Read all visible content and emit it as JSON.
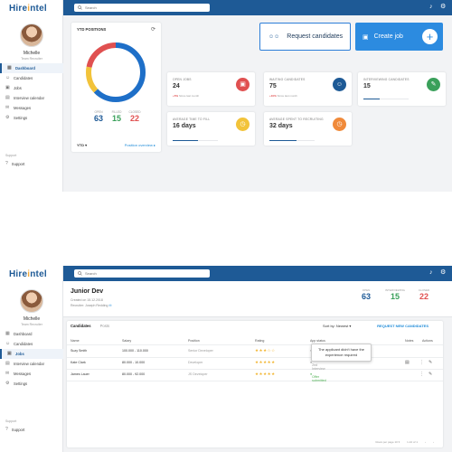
{
  "app": {
    "logo_text": "Hire",
    "logo_accent": "ntel",
    "search_placeholder": "Search"
  },
  "user": {
    "name": "Michelle",
    "role": "Team Recruiter"
  },
  "nav": [
    {
      "label": "Dashboard",
      "icon": "dashboard-icon"
    },
    {
      "label": "Candidates",
      "icon": "people-icon"
    },
    {
      "label": "Jobs",
      "icon": "briefcase-icon"
    },
    {
      "label": "Interview calendar",
      "icon": "calendar-icon"
    },
    {
      "label": "Messages",
      "icon": "mail-icon"
    },
    {
      "label": "Settings",
      "icon": "gear-icon"
    }
  ],
  "support": {
    "section_label": "Support",
    "item_label": "Support"
  },
  "dashboard": {
    "ytd_title": "YTD POSITIONS",
    "ytd_stats": [
      {
        "label": "OPEN",
        "value": "63",
        "color": "#1e5a96"
      },
      {
        "label": "FILLED",
        "value": "15",
        "color": "#3aa05a"
      },
      {
        "label": "CLOSED",
        "value": "22",
        "color": "#e05050"
      }
    ],
    "ytd_donut": [
      {
        "label": "OPEN",
        "fraction": 0.63,
        "color": "#1e6fc8"
      },
      {
        "label": "FILLED",
        "fraction": 0.15,
        "color": "#f2c33a"
      },
      {
        "label": "CLOSED",
        "fraction": 0.22,
        "color": "#e05050"
      }
    ],
    "ytd_period": "YTD",
    "ytd_link": "Position overview",
    "request_label": "Request candidates",
    "create_label": "Create job",
    "metrics": [
      {
        "title": "OPEN JOBS",
        "value": "24",
        "sub_pct": "+5%",
        "sub_text": "Since last month",
        "color": "#e05050",
        "icon": "briefcase-icon"
      },
      {
        "title": "WAITING CANDIDATES",
        "value": "75",
        "sub_pct": "+10%",
        "sub_text": "Since last month",
        "color": "#1e5a96",
        "icon": "people-icon"
      },
      {
        "title": "INTERVIEWING CANDIDATES",
        "value": "15",
        "sub_pct": "",
        "sub_text": "",
        "color": "#3aa05a",
        "icon": "chat-icon",
        "progress": 0.35
      },
      {
        "title": "AVERAGE TIME TO FILL",
        "value": "16 days",
        "sub_pct": "",
        "sub_text": "",
        "color": "#f2c33a",
        "icon": "clock-icon",
        "progress": 0.55
      },
      {
        "title": "AVERAGE SPENT TO RECRUITING",
        "value": "32 days",
        "sub_pct": "",
        "sub_text": "",
        "color": "#f08a3a",
        "icon": "clock-icon",
        "progress": 0.6
      }
    ]
  },
  "job": {
    "title": "Junior Dev",
    "created": "Created on 15.12.2018",
    "recruiter": "Recruiter: Joseph Redding",
    "stats": [
      {
        "label": "OPEN",
        "value": "63",
        "color": "#1e5a96"
      },
      {
        "label": "INTERVIEWING",
        "value": "15",
        "color": "#3aa05a"
      },
      {
        "label": "CLOSED",
        "value": "22",
        "color": "#e05050"
      }
    ],
    "tabs": [
      "Candidates",
      "Posts"
    ],
    "sort_label": "Sort by: Newest",
    "request_new_label": "REQUEST NEW CANDIDATES",
    "columns": [
      "Name",
      "Salary",
      "Position",
      "Rating",
      "App status",
      "Notes",
      "Actions"
    ],
    "rows": [
      {
        "name": "Suzy Smith",
        "salary": "100.000 - 110.000",
        "position": "Senior Developer",
        "stars": "★★★☆☆",
        "status": "Rejected",
        "ok": false
      },
      {
        "name": "Kate Clark",
        "salary": "80.000 - 10.000",
        "position": "Developer",
        "stars": "★★★★★",
        "status": "2nd Interview",
        "ok": false
      },
      {
        "name": "James Lauer",
        "salary": "80.000 - 92.000",
        "position": "JS Developer",
        "stars": "★★★★★",
        "status": "Offer submitted",
        "ok": true
      }
    ],
    "tooltip": "The applicant didn't have the experience required",
    "pager": {
      "rows_label": "Rows per page",
      "range": "1-10 of 1"
    }
  }
}
